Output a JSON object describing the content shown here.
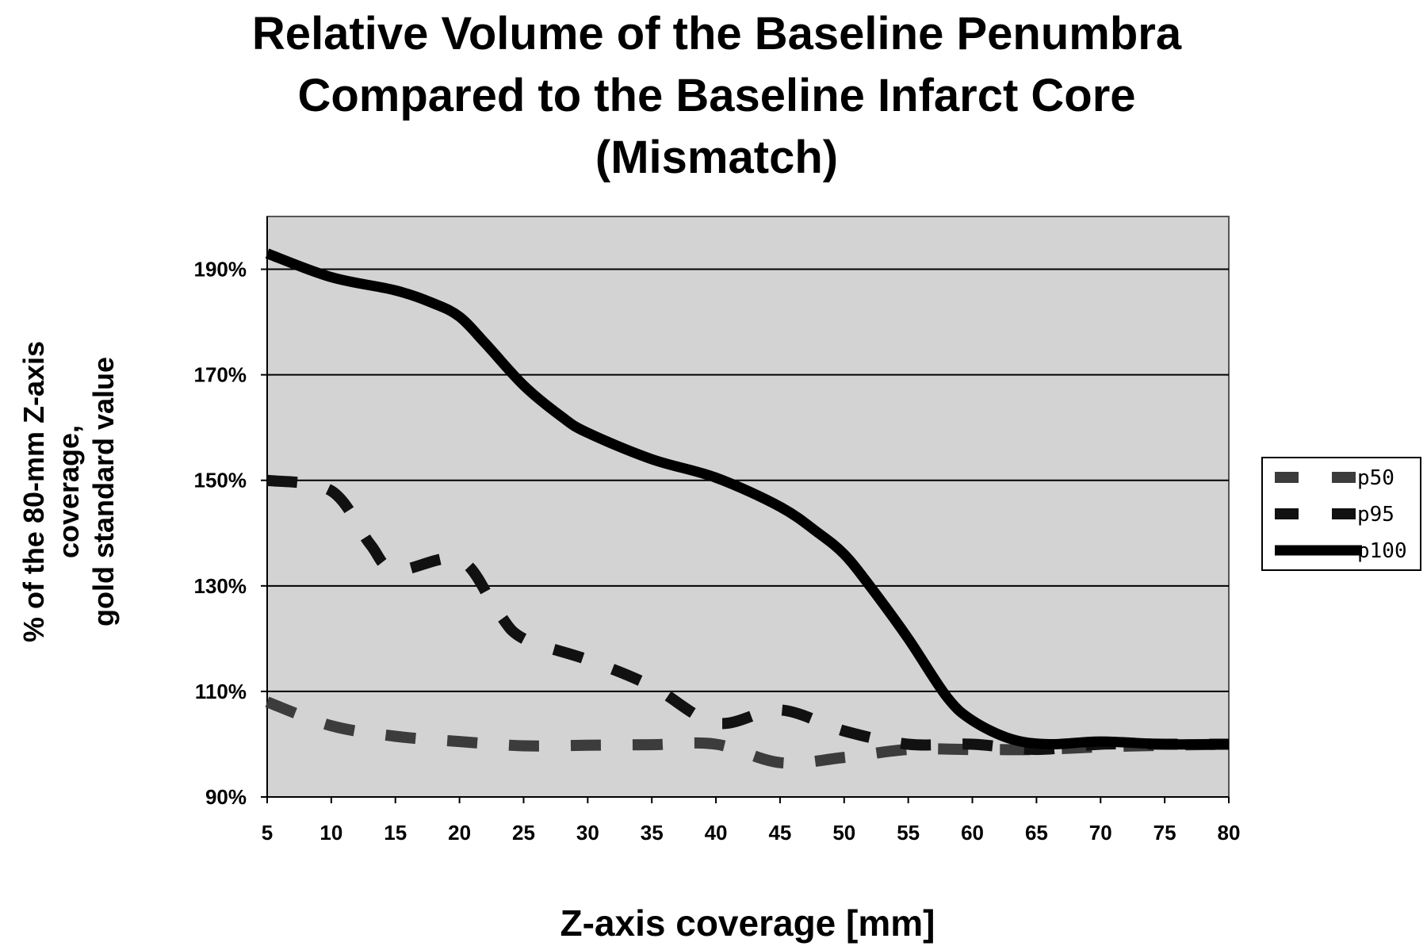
{
  "chart_data": {
    "type": "line",
    "title_lines": [
      "Relative Volume of the Baseline Penumbra",
      "Compared to the Baseline Infarct Core",
      "(Mismatch)"
    ],
    "xlabel": "Z-axis coverage [mm]",
    "ylabel_lines": [
      "% of the 80-mm Z-axis",
      "coverage,",
      "gold standard value"
    ],
    "xlim": [
      5,
      80
    ],
    "ylim": [
      90,
      200
    ],
    "x_ticks": [
      5,
      10,
      15,
      20,
      25,
      30,
      35,
      40,
      45,
      50,
      55,
      60,
      65,
      70,
      75,
      80
    ],
    "y_ticks": [
      90,
      110,
      130,
      150,
      170,
      190
    ],
    "y_tick_labels": [
      "90%",
      "110%",
      "130%",
      "150%",
      "170%",
      "190%"
    ],
    "grid": "horizontal",
    "plot_background": "#d3d3d3",
    "legend_position": "right",
    "series": [
      {
        "name": "p50",
        "style": "dashed",
        "color": "#3c3c3c",
        "x": [
          5,
          10,
          15,
          20,
          25,
          30,
          35,
          40,
          45,
          50,
          55,
          60,
          65,
          70,
          75,
          80
        ],
        "values": [
          108,
          103.5,
          101.5,
          100.5,
          99.7,
          99.8,
          99.9,
          100,
          96.5,
          97.5,
          99,
          99,
          99,
          99.5,
          99.8,
          100
        ]
      },
      {
        "name": "p95",
        "style": "dashed",
        "color": "#111111",
        "x": [
          5,
          10,
          13,
          15,
          20,
          23,
          25,
          30,
          35,
          40,
          45,
          50,
          55,
          60,
          65,
          70,
          75,
          80
        ],
        "values": [
          150,
          148,
          138,
          133,
          135,
          125,
          120,
          116,
          111,
          104,
          106.5,
          102.5,
          100,
          100,
          99,
          100,
          100,
          100
        ]
      },
      {
        "name": "p100",
        "style": "solid",
        "color": "#000000",
        "x": [
          5,
          10,
          15,
          18,
          20,
          22,
          25,
          28,
          30,
          35,
          40,
          45,
          48,
          50,
          52,
          55,
          58,
          60,
          63,
          66,
          70,
          75,
          80
        ],
        "values": [
          193,
          188.5,
          186,
          183.5,
          181,
          176,
          168,
          162,
          159,
          154,
          150.5,
          145,
          140,
          136,
          130,
          120,
          109,
          104.5,
          101,
          100,
          100.5,
          100,
          100
        ]
      }
    ]
  }
}
